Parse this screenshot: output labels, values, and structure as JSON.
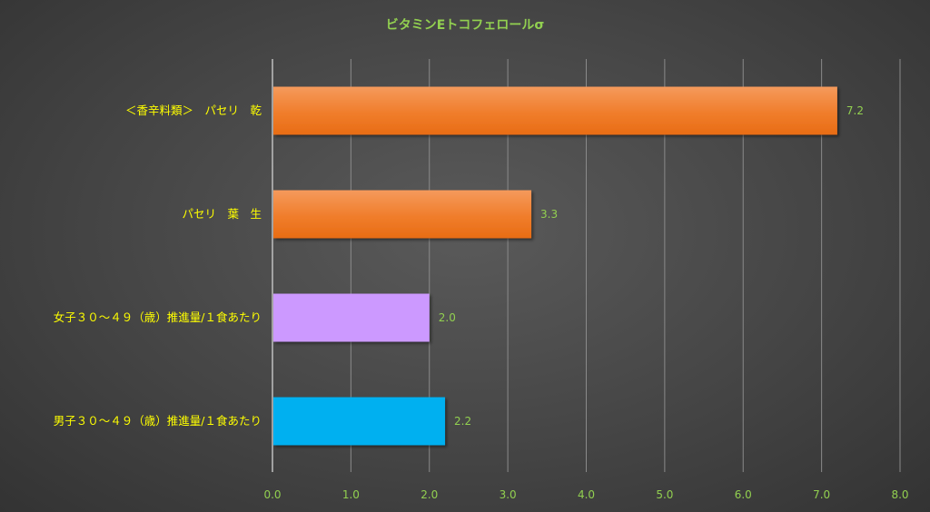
{
  "chart_data": {
    "type": "bar",
    "orientation": "horizontal",
    "title": "ビタミンEトコフェロールσ",
    "categories": [
      "＜香辛料類＞　パセリ　乾",
      "パセリ　葉　生",
      "女子３０～４９（歳）推進量/１食あたり",
      "男子３０～４９（歳）推進量/１食あたり"
    ],
    "values": [
      7.2,
      3.3,
      2.0,
      2.2
    ],
    "value_labels": [
      "7.2",
      "3.3",
      "2.0",
      "2.2"
    ],
    "bar_colors": [
      "#f07d2b",
      "#f07d2b",
      "#cc99ff",
      "#00b0f0"
    ],
    "xlim": [
      0,
      8
    ],
    "xticks": [
      "0.0",
      "1.0",
      "2.0",
      "3.0",
      "4.0",
      "5.0",
      "6.0",
      "7.0",
      "8.0"
    ],
    "grid": true,
    "legend": "none"
  },
  "colors": {
    "title": "#92d050",
    "tick_text": "#92d050",
    "category_text": "#ffff00",
    "value_text": "#92d050",
    "grid": "#8a8a8a",
    "axis": "#bfbfbf"
  }
}
